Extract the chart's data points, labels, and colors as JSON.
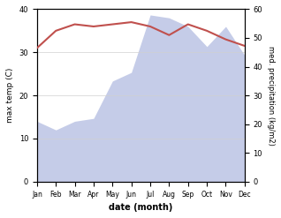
{
  "months": [
    "Jan",
    "Feb",
    "Mar",
    "Apr",
    "May",
    "Jun",
    "Jul",
    "Aug",
    "Sep",
    "Oct",
    "Nov",
    "Dec"
  ],
  "temp": [
    31,
    35,
    36.5,
    36,
    36.5,
    37,
    36,
    34,
    36.5,
    35,
    33,
    31.5
  ],
  "precip": [
    21,
    18,
    21,
    22,
    35,
    38,
    58,
    57,
    54,
    47,
    54,
    44
  ],
  "temp_color": "#c0504d",
  "precip_fill_color": "#c5cce8",
  "ylabel_left": "max temp (C)",
  "ylabel_right": "med. precipitation (kg/m2)",
  "xlabel": "date (month)",
  "ylim_left": [
    0,
    40
  ],
  "ylim_right": [
    0,
    60
  ],
  "bg_color": "#ffffff",
  "grid_color": "#d0d0d0"
}
